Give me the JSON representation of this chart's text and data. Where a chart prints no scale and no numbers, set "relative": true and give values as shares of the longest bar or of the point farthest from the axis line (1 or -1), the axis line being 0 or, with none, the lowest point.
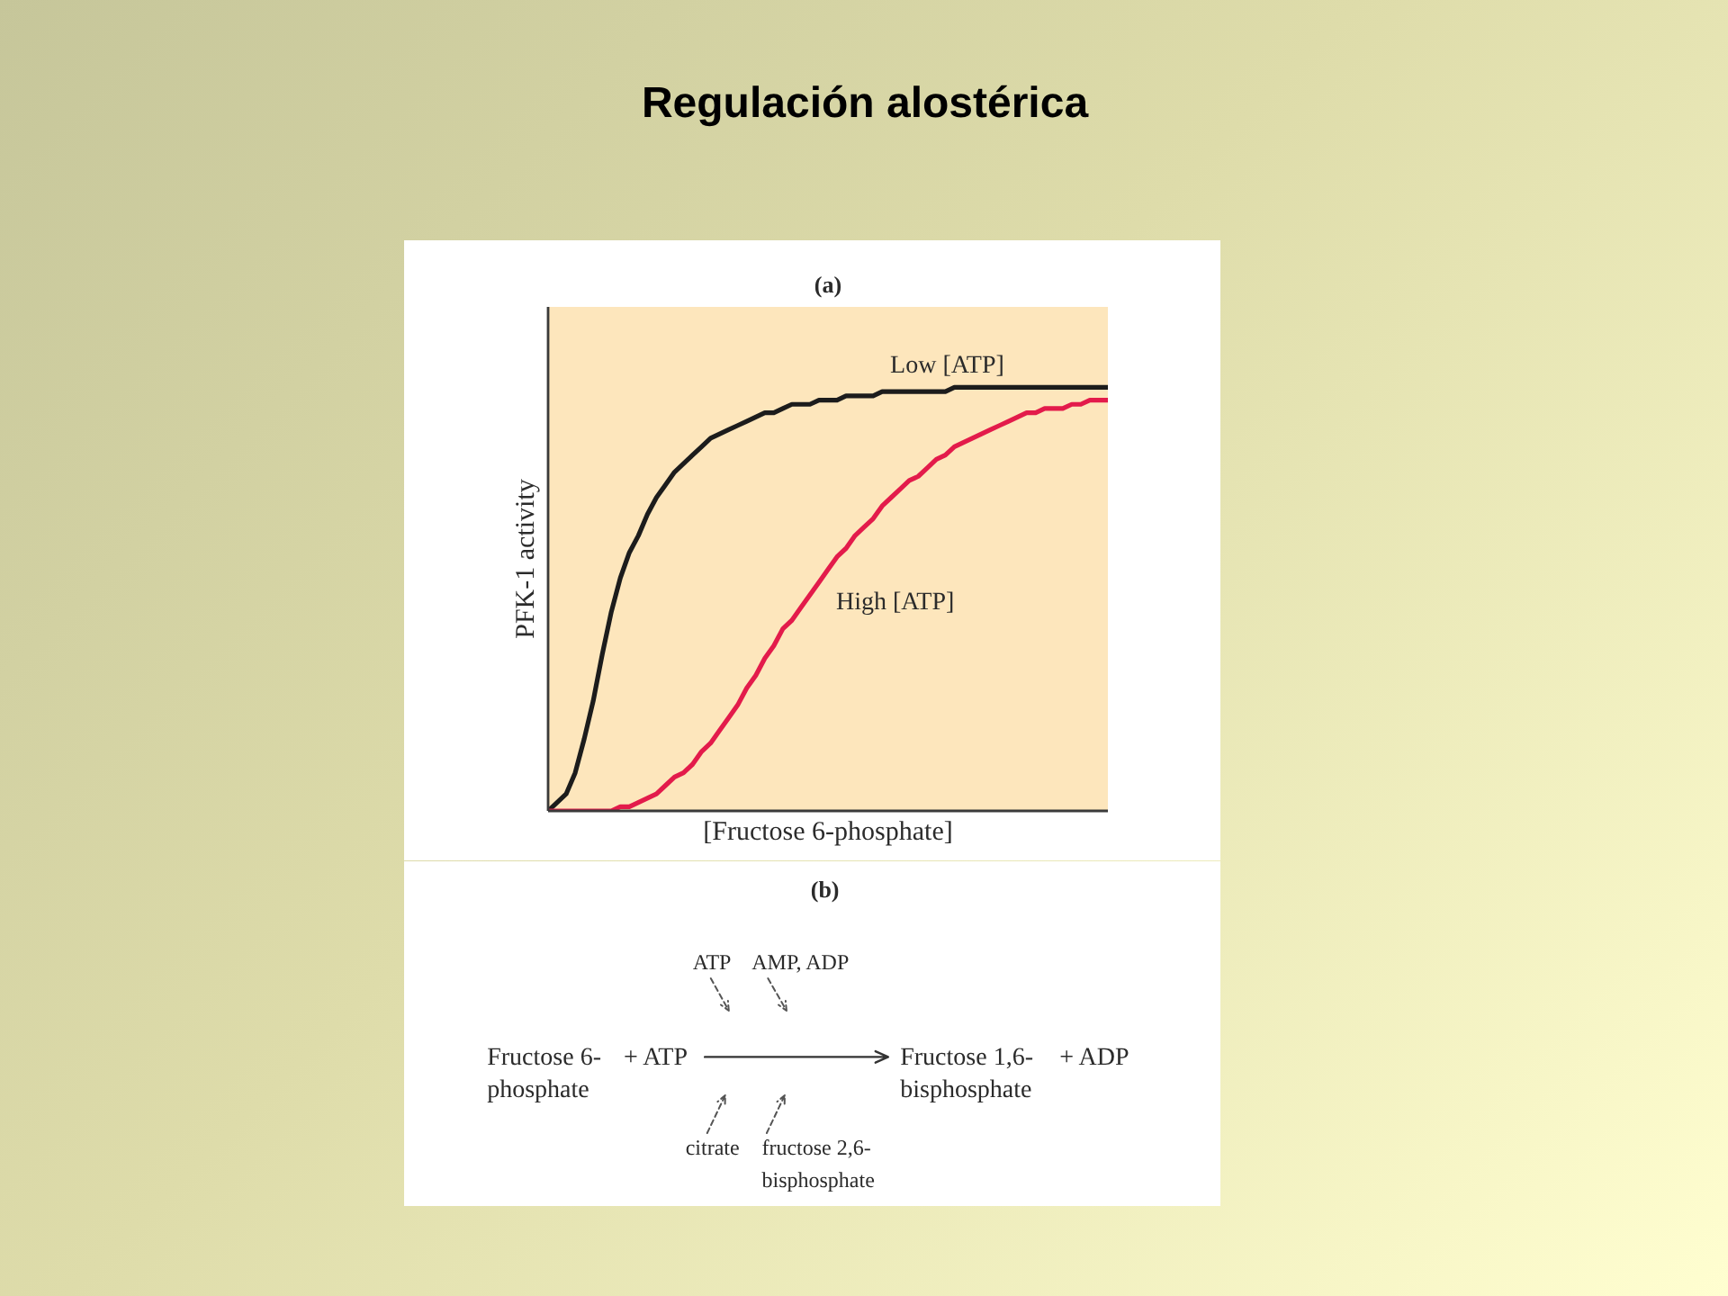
{
  "chart_data": [
    {
      "type": "line",
      "title": "Regulación alostérica",
      "subtitle": "(a)",
      "xlabel": "[Fructose 6-phosphate]",
      "ylabel": "PFK-1 activity",
      "categories": [
        null,
        null,
        null,
        null,
        null,
        null,
        null,
        null,
        null,
        null,
        null,
        null,
        null,
        null,
        null,
        null,
        null,
        null,
        null,
        null,
        null,
        null,
        null,
        null,
        null,
        null,
        null,
        null,
        null,
        null,
        null,
        null,
        null,
        null,
        null,
        null,
        null,
        null,
        null,
        null,
        null,
        null,
        null,
        null,
        null,
        null,
        null,
        null,
        null,
        null,
        null,
        null,
        null,
        null,
        null,
        null,
        null,
        null,
        null,
        null,
        null,
        null,
        null
      ],
      "relative": true,
      "line_style": "solid",
      "series": [
        {
          "name": "Low [ATP]",
          "color": "#1c1c1c",
          "values": [
            0,
            0.02,
            0.04,
            0.09,
            0.17,
            0.26,
            0.37,
            0.47,
            0.55,
            0.61,
            0.65,
            0.7,
            0.74,
            0.77,
            0.8,
            0.82,
            0.84,
            0.86,
            0.88,
            0.89,
            0.9,
            0.91,
            0.92,
            0.93,
            0.94,
            0.94,
            0.95,
            0.96,
            0.96,
            0.96,
            0.97,
            0.97,
            0.97,
            0.98,
            0.98,
            0.98,
            0.98,
            0.99,
            0.99,
            0.99,
            0.99,
            0.99,
            0.99,
            0.99,
            0.99,
            1.0,
            1.0,
            1.0,
            1.0,
            1.0,
            1.0,
            1.0,
            1.0,
            1.0,
            1.0,
            1.0,
            1.0,
            1.0,
            1.0,
            1.0,
            1.0,
            1.0,
            1.0
          ]
        },
        {
          "name": "High [ATP]",
          "color": "#e31b4b",
          "values": [
            0,
            0,
            0,
            0,
            0,
            0,
            0,
            0,
            0.01,
            0.01,
            0.02,
            0.03,
            0.04,
            0.06,
            0.08,
            0.09,
            0.11,
            0.14,
            0.16,
            0.19,
            0.22,
            0.25,
            0.29,
            0.32,
            0.36,
            0.39,
            0.43,
            0.45,
            0.48,
            0.51,
            0.54,
            0.57,
            0.6,
            0.62,
            0.65,
            0.67,
            0.69,
            0.72,
            0.74,
            0.76,
            0.78,
            0.79,
            0.81,
            0.83,
            0.84,
            0.86,
            0.87,
            0.88,
            0.89,
            0.9,
            0.91,
            0.92,
            0.93,
            0.94,
            0.94,
            0.95,
            0.95,
            0.95,
            0.96,
            0.96,
            0.97,
            0.97,
            0.97
          ]
        }
      ]
    },
    {
      "type": "other",
      "title": "(b)",
      "annotations": [
        "ATP",
        "AMP, ADP",
        "Fructose 6-\nphosphate",
        "+ ATP",
        "Fructose 1,6-\nbisphosphate",
        "+ ADP",
        "citrate",
        "fructose 2,6-\nbisphosphate"
      ]
    }
  ]
}
